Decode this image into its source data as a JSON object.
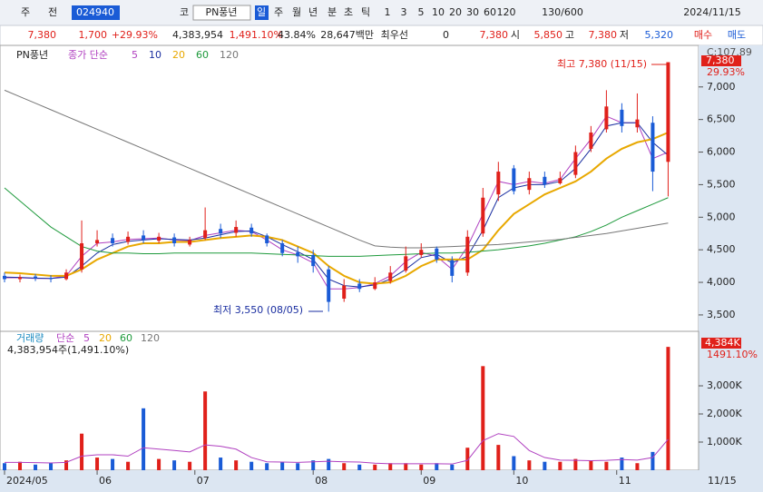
{
  "toolbar": [
    "주",
    "전",
    "024940",
    "코",
    "PN풍년",
    "일",
    "주",
    "월",
    "년",
    "분",
    "초",
    "틱",
    "1",
    "3",
    "5",
    "10",
    "20",
    "30",
    "60",
    "120",
    "130/600",
    "2024/11/15"
  ],
  "info": [
    "7,380",
    "1,700",
    "+29.93%",
    "4,383,954",
    "1,491.10%",
    "43.84%",
    "28,647백만",
    "최우선",
    "0",
    "7,380",
    "시",
    "5,850",
    "고",
    "7,380",
    "저",
    "5,320",
    "매수",
    "매도"
  ],
  "chart_data": [
    {
      "type": "candlestick",
      "legend_title": "PN풍년",
      "legend_prefix": "종가 단순",
      "x": [
        0,
        3,
        6,
        9,
        12,
        15,
        18,
        21,
        24,
        27,
        30,
        33,
        36,
        39,
        42,
        45,
        48,
        51,
        54,
        57,
        60,
        63,
        66,
        69,
        72,
        75,
        78,
        81,
        84,
        87,
        90,
        93,
        96,
        99,
        102,
        105,
        108,
        111,
        114,
        117,
        120,
        123,
        126,
        129
      ],
      "open": [
        4100,
        4050,
        4090,
        4070,
        4050,
        4200,
        4600,
        4680,
        4620,
        4720,
        4640,
        4690,
        4580,
        4680,
        4820,
        4760,
        4840,
        4720,
        4600,
        4460,
        4420,
        4200,
        3750,
        3980,
        3900,
        4020,
        4180,
        4420,
        4520,
        4340,
        4150,
        4750,
        5350,
        5750,
        5420,
        5620,
        5520,
        5650,
        6050,
        6350,
        6650,
        6380,
        6450,
        5850
      ],
      "high": [
        4150,
        4120,
        4130,
        4110,
        4200,
        4950,
        4800,
        4750,
        4780,
        4800,
        4760,
        4750,
        4700,
        5150,
        4900,
        4950,
        4900,
        4750,
        4650,
        4550,
        4500,
        4250,
        4050,
        4050,
        4080,
        4250,
        4550,
        4600,
        4550,
        4400,
        4800,
        5450,
        5850,
        5800,
        5700,
        5700,
        5700,
        6100,
        6400,
        6950,
        6750,
        6900,
        6550,
        7380
      ],
      "low": [
        4000,
        4000,
        4020,
        4000,
        4030,
        4150,
        4550,
        4550,
        4580,
        4600,
        4600,
        4550,
        4550,
        4650,
        4680,
        4700,
        4700,
        4550,
        4400,
        4300,
        4150,
        3550,
        3700,
        3850,
        3880,
        3980,
        4150,
        4380,
        4300,
        4000,
        4100,
        4700,
        5250,
        5350,
        5350,
        5450,
        5500,
        5600,
        6000,
        6300,
        6300,
        6300,
        5400,
        5320
      ],
      "close": [
        4050,
        4080,
        4060,
        4050,
        4150,
        4600,
        4650,
        4600,
        4700,
        4650,
        4700,
        4600,
        4650,
        4800,
        4750,
        4850,
        4750,
        4600,
        4450,
        4400,
        4250,
        3700,
        3950,
        3900,
        4000,
        4150,
        4400,
        4500,
        4350,
        4100,
        4700,
        5300,
        5700,
        5400,
        5600,
        5500,
        5600,
        6000,
        6300,
        6700,
        6400,
        6500,
        5700,
        7380
      ],
      "up_color": "#e0201a",
      "down_color": "#1a5bd6",
      "series": [
        {
          "name": "5",
          "color": "#b040c0",
          "values": [
            4070,
            4070,
            4060,
            4060,
            4100,
            4400,
            4600,
            4620,
            4660,
            4670,
            4680,
            4650,
            4640,
            4720,
            4760,
            4800,
            4780,
            4650,
            4500,
            4420,
            4300,
            3900,
            3900,
            3920,
            3980,
            4100,
            4320,
            4460,
            4400,
            4200,
            4550,
            5050,
            5550,
            5500,
            5550,
            5520,
            5580,
            5900,
            6200,
            6550,
            6450,
            6450,
            5900,
            6000
          ]
        },
        {
          "name": "10",
          "color": "#1a2ea0",
          "values": [
            4080,
            4075,
            4065,
            4060,
            4080,
            4250,
            4450,
            4580,
            4630,
            4650,
            4670,
            4660,
            4650,
            4680,
            4730,
            4780,
            4790,
            4700,
            4580,
            4470,
            4350,
            4050,
            3950,
            3930,
            3960,
            4050,
            4200,
            4380,
            4430,
            4300,
            4400,
            4800,
            5300,
            5450,
            5500,
            5500,
            5550,
            5750,
            6050,
            6400,
            6450,
            6450,
            6150,
            5950
          ]
        },
        {
          "name": "20",
          "color": "#e8a800",
          "values": [
            4150,
            4140,
            4120,
            4100,
            4100,
            4200,
            4350,
            4450,
            4550,
            4600,
            4600,
            4620,
            4620,
            4650,
            4680,
            4700,
            4720,
            4700,
            4650,
            4550,
            4450,
            4250,
            4100,
            4000,
            3980,
            4000,
            4100,
            4250,
            4350,
            4350,
            4350,
            4500,
            4800,
            5050,
            5200,
            5350,
            5450,
            5550,
            5700,
            5900,
            6050,
            6150,
            6200,
            6300
          ]
        },
        {
          "name": "60",
          "color": "#1e9a3c",
          "values": [
            5450,
            5250,
            5050,
            4850,
            4700,
            4550,
            4480,
            4450,
            4450,
            4440,
            4440,
            4450,
            4450,
            4450,
            4450,
            4450,
            4450,
            4440,
            4430,
            4420,
            4410,
            4400,
            4400,
            4400,
            4410,
            4420,
            4430,
            4440,
            4450,
            4450,
            4460,
            4480,
            4500,
            4530,
            4560,
            4600,
            4650,
            4700,
            4780,
            4880,
            5000,
            5100,
            5200,
            5300
          ]
        },
        {
          "name": "120",
          "color": "#777777",
          "values": [
            6950,
            6850,
            6750,
            6650,
            6550,
            6450,
            6350,
            6250,
            6150,
            6050,
            5950,
            5850,
            5750,
            5650,
            5550,
            5450,
            5350,
            5250,
            5150,
            5050,
            4950,
            4850,
            4750,
            4650,
            4560,
            4540,
            4530,
            4530,
            4540,
            4550,
            4560,
            4570,
            4580,
            4600,
            4620,
            4640,
            4660,
            4690,
            4720,
            4750,
            4790,
            4830,
            4870,
            4910
          ]
        }
      ],
      "xlim": [
        -1,
        131
      ],
      "ylim": [
        3290,
        7610
      ],
      "yticks": [
        {
          "value": 3500,
          "label": "3,500"
        },
        {
          "value": 4000,
          "label": "4,000"
        },
        {
          "value": 4500,
          "label": "4,500"
        },
        {
          "value": 5000,
          "label": "5,000"
        },
        {
          "value": 5500,
          "label": "5,500"
        },
        {
          "value": 6000,
          "label": "6,000"
        },
        {
          "value": 6500,
          "label": "6,500"
        },
        {
          "value": 7000,
          "label": "7,000"
        }
      ],
      "top_label": "C:107.89",
      "last_label": "7,380",
      "change_label": "29.93%",
      "annotations": [
        {
          "text": "최고 7,380 (11/15)",
          "color": "#e0201a"
        },
        {
          "text": "최저 3,550 (08/05)",
          "color": "#1a2ea0"
        }
      ]
    },
    {
      "type": "bar",
      "legend_title": "거래량",
      "legend_prefix": "단순",
      "legend_items": [
        "5",
        "20",
        "60",
        "120"
      ],
      "summary": "4,383,954주(1,491.10%)",
      "values": [
        250,
        300,
        200,
        250,
        350,
        1300,
        450,
        400,
        300,
        2200,
        400,
        350,
        300,
        2800,
        450,
        350,
        300,
        250,
        300,
        250,
        350,
        400,
        250,
        200,
        200,
        250,
        250,
        200,
        250,
        200,
        800,
        3700,
        900,
        500,
        350,
        300,
        300,
        400,
        350,
        300,
        450,
        250,
        650,
        4384
      ],
      "series": [
        {
          "name": "5",
          "color": "#b040c0",
          "values": [
            280,
            280,
            270,
            260,
            280,
            500,
            550,
            550,
            500,
            800,
            750,
            700,
            650,
            900,
            850,
            750,
            450,
            300,
            290,
            280,
            300,
            320,
            300,
            290,
            250,
            230,
            230,
            230,
            230,
            220,
            350,
            1050,
            1300,
            1200,
            700,
            450,
            360,
            350,
            340,
            350,
            380,
            360,
            450,
            1100
          ]
        }
      ],
      "ylim": [
        0,
        4840
      ],
      "yticks": [
        {
          "value": 1000,
          "label": "1,000K"
        },
        {
          "value": 2000,
          "label": "2,000K"
        },
        {
          "value": 3000,
          "label": "3,000K"
        }
      ],
      "last_label": "4,384K",
      "change_label": "1491.10%",
      "xticks": [
        {
          "value": 0,
          "label": "2024/05"
        },
        {
          "value": 18,
          "label": "06"
        },
        {
          "value": 37,
          "label": "07"
        },
        {
          "value": 60,
          "label": "08"
        },
        {
          "value": 81,
          "label": "09"
        },
        {
          "value": 99,
          "label": "10"
        },
        {
          "value": 119,
          "label": "11"
        }
      ],
      "end_label": "11/15"
    }
  ]
}
